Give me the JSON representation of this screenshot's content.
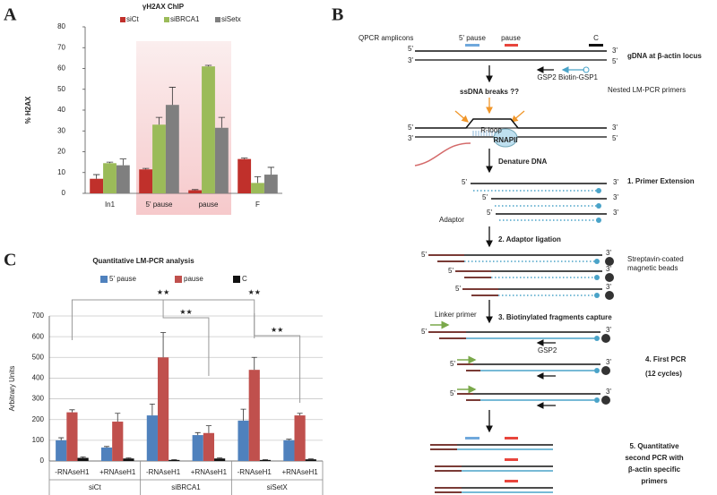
{
  "panels": [
    "A",
    "B",
    "C"
  ],
  "chart_data": [
    {
      "type": "bar",
      "title": "γH2AX ChIP",
      "y_label": "% H2AX",
      "categories": [
        "In1",
        "5' pause",
        "pause",
        "F"
      ],
      "series": [
        {
          "name": "siCt",
          "color": "#c0302b",
          "values": [
            7,
            11.5,
            1.5,
            16.5
          ],
          "errors": [
            2,
            0.5,
            0.3,
            0.5
          ]
        },
        {
          "name": "siBRCA1",
          "color": "#9bbb59",
          "values": [
            14.5,
            33,
            61,
            5
          ],
          "errors": [
            0.5,
            3.5,
            0.5,
            3
          ]
        },
        {
          "name": "siSetx",
          "color": "#7f7f7f",
          "values": [
            13.5,
            42.5,
            31.5,
            9
          ],
          "errors": [
            3,
            8.5,
            5,
            3.5
          ]
        }
      ],
      "ylim": [
        0,
        80
      ],
      "yticks": [
        0,
        10,
        20,
        30,
        40,
        50,
        60,
        70,
        80
      ],
      "grid": false
    },
    {
      "type": "bar",
      "title": "Quantitative LM-PCR analysis",
      "y_label": "Arbitrary Units",
      "categories": [
        "-RNAseH1",
        "+RNAseH1",
        "-RNAseH1",
        "+RNAseH1",
        "-RNAseH1",
        "+RNAseH1"
      ],
      "groups": [
        "siCt",
        "siBRCA1",
        "siSetX"
      ],
      "series": [
        {
          "name": "5' pause",
          "color": "#4f81bd",
          "values": [
            100,
            65,
            220,
            125,
            195,
            100
          ],
          "errors": [
            12,
            5,
            55,
            12,
            55,
            5
          ]
        },
        {
          "name": "pause",
          "color": "#c0504d",
          "values": [
            235,
            190,
            500,
            135,
            440,
            220
          ],
          "errors": [
            12,
            40,
            120,
            35,
            60,
            10
          ]
        },
        {
          "name": "C",
          "color": "#111111",
          "values": [
            15,
            12,
            5,
            12,
            5,
            8
          ],
          "errors": [
            5,
            3,
            2,
            3,
            2,
            2
          ]
        }
      ],
      "annotations": [
        "★★",
        "★★",
        "★★",
        "★★"
      ],
      "ylim": [
        0,
        700
      ],
      "yticks": [
        0,
        100,
        200,
        300,
        400,
        500,
        600,
        700
      ],
      "grid": true
    }
  ],
  "diagram": {
    "amplicons_label": "QPCR amplicons",
    "amplicons": [
      "5' pause",
      "pause",
      "C"
    ],
    "locus": "gDNA at β-actin locus",
    "primers": [
      "GSP2",
      "Biotin-GSP1"
    ],
    "nested": "Nested LM-PCR primers",
    "breaks": "ssDNA breaks ??",
    "rloop": "R-loop",
    "rnapii": "RNAPII",
    "steps": [
      "Denature DNA",
      "1. Primer Extension",
      "2. Adaptor ligation",
      "3. Biotinylated fragments capture"
    ],
    "adaptor": "Adaptor",
    "beads": [
      "Streptavin-coated",
      "magnetic beads"
    ],
    "linker": "Linker primer",
    "gsp2_pcr": "GSP2",
    "step4": [
      "4. First PCR",
      "(12 cycles)"
    ],
    "step5": [
      "5. Quantitative",
      "second PCR with",
      "β-actin specific",
      "primers"
    ],
    "ends": [
      "5'",
      "3'",
      "3'",
      "5'",
      "5'",
      "3'",
      "3'",
      "5'",
      "5'",
      "3'",
      "5'",
      "3'",
      "5'",
      "3'",
      "5'",
      "3'",
      "5'",
      "3'",
      "5'",
      "3'",
      "5'",
      "3'",
      "5'",
      "3'",
      "5'",
      "3'"
    ]
  }
}
